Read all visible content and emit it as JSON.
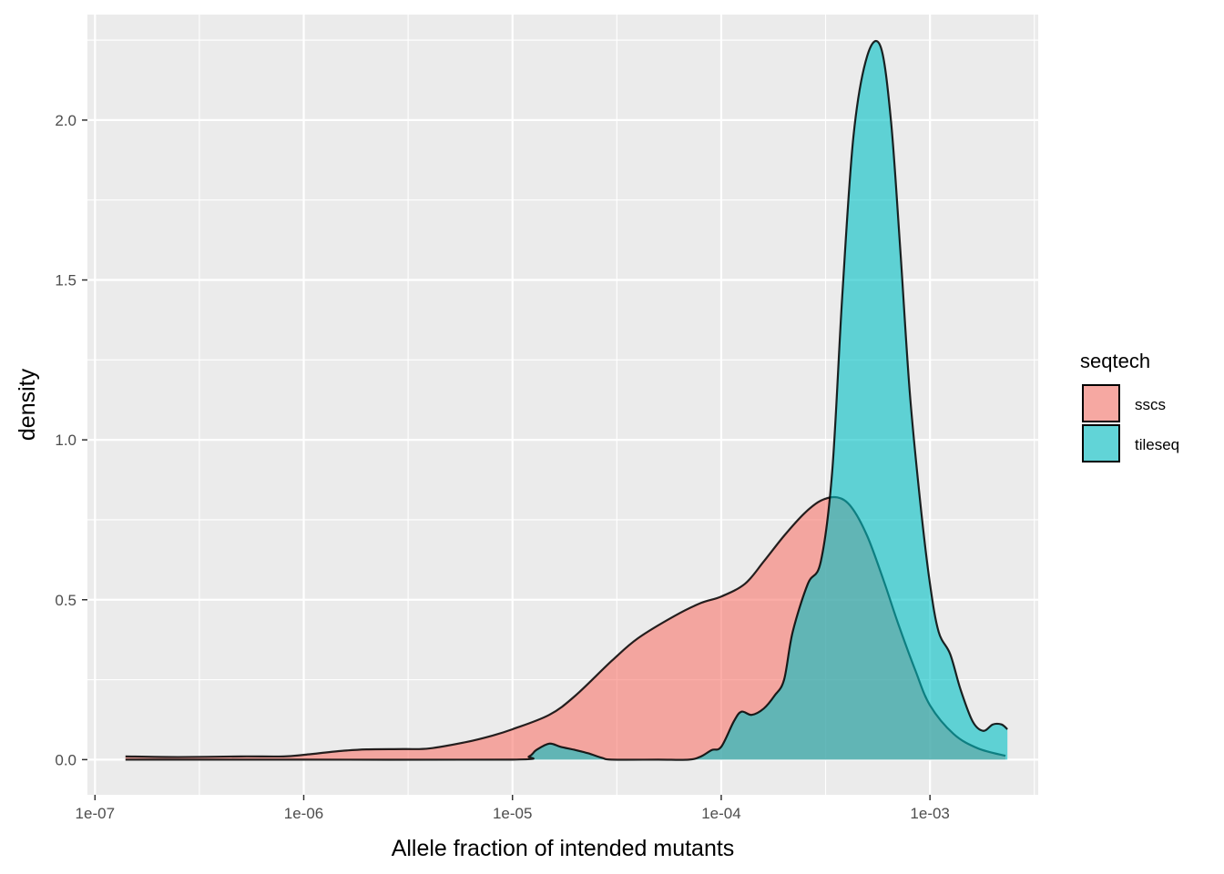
{
  "chart_data": {
    "type": "area",
    "title": "",
    "xlabel": "Allele fraction of intended mutants",
    "ylabel": "density",
    "x_scale": "log10",
    "x_ticks": [
      {
        "value": 1e-07,
        "label": "1e-07"
      },
      {
        "value": 1e-06,
        "label": "1e-06"
      },
      {
        "value": 1e-05,
        "label": "1e-05"
      },
      {
        "value": 0.0001,
        "label": "1e-04"
      },
      {
        "value": 0.001,
        "label": "1e-03"
      }
    ],
    "y_ticks": [
      {
        "value": 0.0,
        "label": "0.0"
      },
      {
        "value": 0.5,
        "label": "0.5"
      },
      {
        "value": 1.0,
        "label": "1.0"
      },
      {
        "value": 1.5,
        "label": "1.5"
      },
      {
        "value": 2.0,
        "label": "2.0"
      }
    ],
    "xlim": [
      9.2e-08,
      0.0033
    ],
    "ylim": [
      -0.11,
      2.33
    ],
    "grid": true,
    "legend": {
      "title": "seqtech",
      "position": "right"
    },
    "series": [
      {
        "name": "sscs",
        "color": "#F8766D",
        "x": [
          1.4e-07,
          2.5e-07,
          5e-07,
          8e-07,
          1e-06,
          1.5e-06,
          2e-06,
          3e-06,
          4e-06,
          6e-06,
          8e-06,
          1e-05,
          1.5e-05,
          2e-05,
          3e-05,
          4e-05,
          6e-05,
          8e-05,
          0.0001,
          0.00013,
          0.00016,
          0.0002,
          0.00025,
          0.0003,
          0.00036,
          0.00042,
          0.0005,
          0.0006,
          0.0007,
          0.00085,
          0.001,
          0.0013,
          0.0017,
          0.0023
        ],
        "y": [
          0.01,
          0.008,
          0.01,
          0.01,
          0.015,
          0.027,
          0.032,
          0.033,
          0.035,
          0.055,
          0.075,
          0.095,
          0.14,
          0.2,
          0.31,
          0.38,
          0.45,
          0.49,
          0.51,
          0.55,
          0.62,
          0.7,
          0.77,
          0.81,
          0.82,
          0.79,
          0.7,
          0.56,
          0.43,
          0.28,
          0.17,
          0.08,
          0.035,
          0.012
        ]
      },
      {
        "name": "tileseq",
        "color": "#00BFC4",
        "x": [
          1.4e-07,
          1e-06,
          1e-05,
          1.2e-05,
          1.3e-05,
          1.5e-05,
          1.7e-05,
          2e-05,
          2.3e-05,
          2.7e-05,
          3e-05,
          5e-05,
          7e-05,
          8e-05,
          9e-05,
          0.0001,
          0.000115,
          0.000125,
          0.00014,
          0.00016,
          0.00018,
          0.0002,
          0.00022,
          0.00026,
          0.0003,
          0.00034,
          0.00038,
          0.00043,
          0.0005,
          0.00058,
          0.00065,
          0.00072,
          0.0008,
          0.0009,
          0.001,
          0.0011,
          0.00125,
          0.0014,
          0.0016,
          0.0018,
          0.002,
          0.0022,
          0.00235
        ],
        "y": [
          0.0,
          0.0,
          0.0,
          0.01,
          0.03,
          0.05,
          0.04,
          0.03,
          0.02,
          0.005,
          0.0,
          0.0,
          0.0,
          0.01,
          0.03,
          0.04,
          0.12,
          0.15,
          0.14,
          0.16,
          0.2,
          0.25,
          0.4,
          0.55,
          0.62,
          0.9,
          1.45,
          1.95,
          2.2,
          2.23,
          2.0,
          1.6,
          1.15,
          0.8,
          0.55,
          0.4,
          0.33,
          0.22,
          0.12,
          0.09,
          0.11,
          0.11,
          0.095
        ]
      }
    ]
  }
}
